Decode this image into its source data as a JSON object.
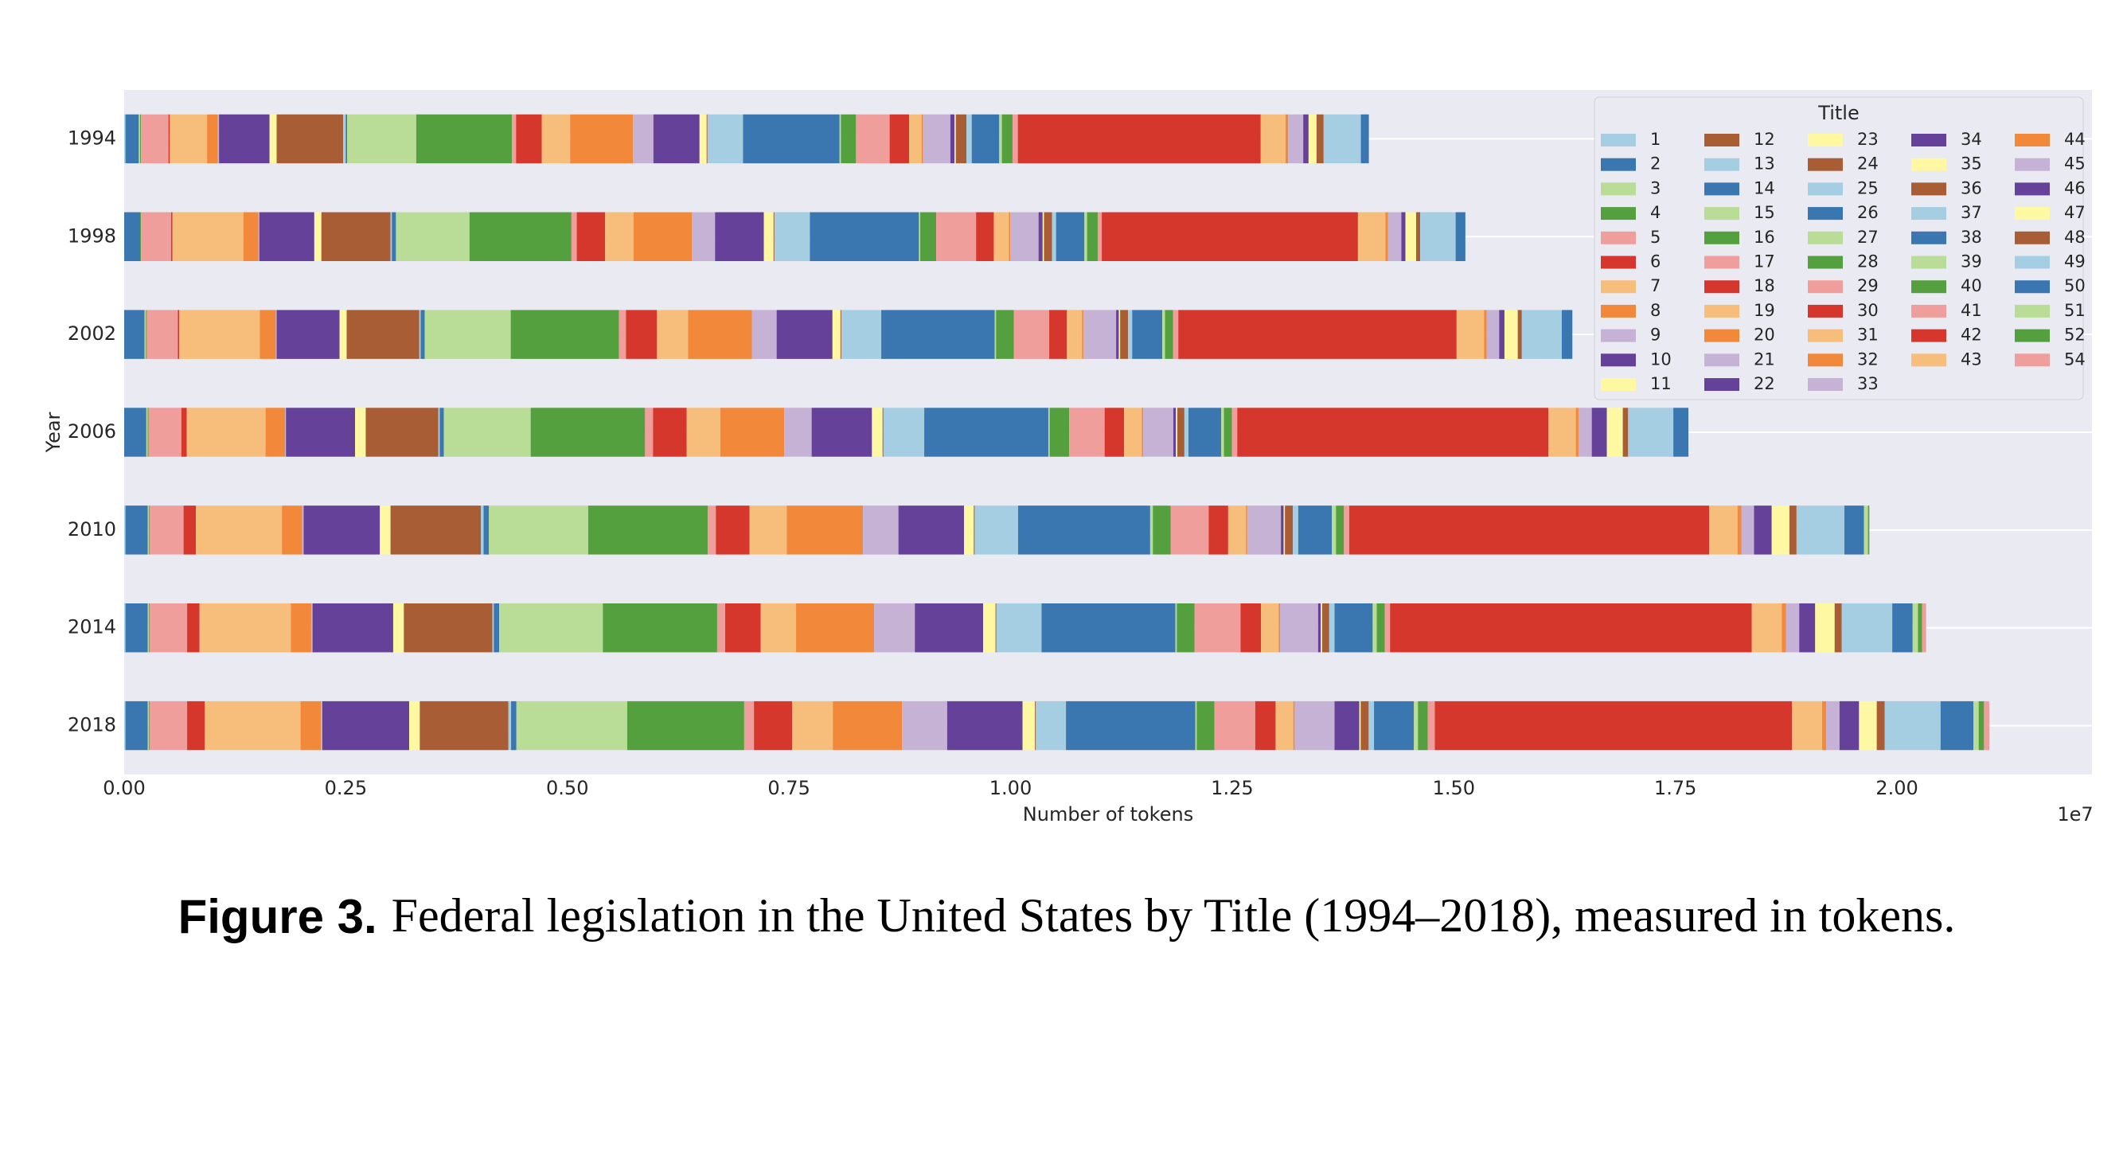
{
  "chart_data": {
    "type": "stacked_barh",
    "xlabel": "Number of tokens",
    "ylabel": "Year",
    "x_offset_label": "1e7",
    "legend_title": "Title",
    "legend_position": "upper right",
    "grid": true,
    "categories": [
      "1994",
      "1998",
      "2002",
      "2006",
      "2010",
      "2014",
      "2018"
    ],
    "xlim": [
      0,
      2.22
    ],
    "xticks": [
      {
        "value": 0,
        "label": "0.00"
      },
      {
        "value": 0.25,
        "label": "0.25"
      },
      {
        "value": 0.5,
        "label": "0.50"
      },
      {
        "value": 0.75,
        "label": "0.75"
      },
      {
        "value": 1,
        "label": "1.00"
      },
      {
        "value": 1.25,
        "label": "1.25"
      },
      {
        "value": 1.5,
        "label": "1.50"
      },
      {
        "value": 1.75,
        "label": "1.75"
      },
      {
        "value": 2,
        "label": "2.00"
      }
    ],
    "series": [
      {
        "name": "1",
        "color": "#a6cee3",
        "values": [
          0.0015,
          0,
          0,
          0,
          0.0015,
          0.0015,
          0.0015
        ]
      },
      {
        "name": "2",
        "color": "#3a77b0",
        "values": [
          0.015,
          0.018,
          0.023,
          0.025,
          0.025,
          0.025,
          0.025
        ]
      },
      {
        "name": "3",
        "color": "#b9dd96",
        "values": [
          0.0015,
          0,
          0.0015,
          0.0015,
          0.0015,
          0.0015,
          0.0015
        ]
      },
      {
        "name": "4",
        "color": "#55a03e",
        "values": [
          0.001,
          0.001,
          0.001,
          0.001,
          0.001,
          0.001,
          0.001
        ]
      },
      {
        "name": "5",
        "color": "#f09e9b",
        "values": [
          0.031,
          0.034,
          0.035,
          0.037,
          0.038,
          0.042,
          0.042
        ]
      },
      {
        "name": "6",
        "color": "#d5372d",
        "values": [
          0.0015,
          0.0015,
          0.0015,
          0.006,
          0.014,
          0.014,
          0.02
        ]
      },
      {
        "name": "7",
        "color": "#f6be7a",
        "values": [
          0.042,
          0.08,
          0.091,
          0.089,
          0.097,
          0.103,
          0.108
        ]
      },
      {
        "name": "8",
        "color": "#f2883a",
        "values": [
          0.012,
          0.017,
          0.018,
          0.022,
          0.023,
          0.023,
          0.023
        ]
      },
      {
        "name": "9",
        "color": "#c5b2d4",
        "values": [
          0.0015,
          0.001,
          0.001,
          0.001,
          0.0015,
          0.0015,
          0.0015
        ]
      },
      {
        "name": "10",
        "color": "#66419a",
        "values": [
          0.057,
          0.062,
          0.071,
          0.078,
          0.086,
          0.091,
          0.098
        ]
      },
      {
        "name": "11",
        "color": "#fdf8a1",
        "values": [
          0.008,
          0.008,
          0.008,
          0.012,
          0.012,
          0.012,
          0.012
        ]
      },
      {
        "name": "12",
        "color": "#a85d35",
        "values": [
          0.075,
          0.078,
          0.082,
          0.082,
          0.102,
          0.1,
          0.1
        ]
      },
      {
        "name": "13",
        "color": "#a6cee3",
        "values": [
          0.003,
          0.0015,
          0.0015,
          0.0015,
          0.003,
          0.0015,
          0.003
        ]
      },
      {
        "name": "14",
        "color": "#3a77b0",
        "values": [
          0.0015,
          0.0046,
          0.0046,
          0.0046,
          0.006,
          0.006,
          0.006
        ]
      },
      {
        "name": "15",
        "color": "#b9dd96",
        "values": [
          0.078,
          0.083,
          0.097,
          0.098,
          0.112,
          0.117,
          0.125
        ]
      },
      {
        "name": "16",
        "color": "#55a03e",
        "values": [
          0.108,
          0.115,
          0.122,
          0.129,
          0.135,
          0.129,
          0.132
        ]
      },
      {
        "name": "17",
        "color": "#f09e9b",
        "values": [
          0.0046,
          0.006,
          0.008,
          0.009,
          0.009,
          0.009,
          0.011
        ]
      },
      {
        "name": "18",
        "color": "#d5372d",
        "values": [
          0.029,
          0.032,
          0.035,
          0.038,
          0.038,
          0.04,
          0.043
        ]
      },
      {
        "name": "19",
        "color": "#f6be7a",
        "values": [
          0.032,
          0.032,
          0.035,
          0.038,
          0.042,
          0.04,
          0.046
        ]
      },
      {
        "name": "20",
        "color": "#f2883a",
        "values": [
          0.071,
          0.066,
          0.072,
          0.072,
          0.086,
          0.088,
          0.078
        ]
      },
      {
        "name": "21",
        "color": "#c5b2d4",
        "values": [
          0.023,
          0.026,
          0.028,
          0.031,
          0.04,
          0.046,
          0.051
        ]
      },
      {
        "name": "22",
        "color": "#66419a",
        "values": [
          0.052,
          0.055,
          0.063,
          0.068,
          0.074,
          0.077,
          0.085
        ]
      },
      {
        "name": "23",
        "color": "#fdf8a1",
        "values": [
          0.008,
          0.011,
          0.009,
          0.012,
          0.011,
          0.014,
          0.014
        ]
      },
      {
        "name": "24",
        "color": "#a85d35",
        "values": [
          0.001,
          0.001,
          0.001,
          0.001,
          0.001,
          0.001,
          0.001
        ]
      },
      {
        "name": "25",
        "color": "#a6cee3",
        "values": [
          0.04,
          0.04,
          0.045,
          0.046,
          0.049,
          0.051,
          0.034
        ]
      },
      {
        "name": "26",
        "color": "#3a77b0",
        "values": [
          0.109,
          0.123,
          0.128,
          0.14,
          0.149,
          0.151,
          0.146
        ]
      },
      {
        "name": "27",
        "color": "#b9dd96",
        "values": [
          0.0015,
          0.0015,
          0.0015,
          0.0015,
          0.003,
          0.0015,
          0.0015
        ]
      },
      {
        "name": "28",
        "color": "#55a03e",
        "values": [
          0.017,
          0.018,
          0.02,
          0.022,
          0.02,
          0.02,
          0.02
        ]
      },
      {
        "name": "29",
        "color": "#f09e9b",
        "values": [
          0.038,
          0.045,
          0.04,
          0.04,
          0.043,
          0.052,
          0.046
        ]
      },
      {
        "name": "30",
        "color": "#d5372d",
        "values": [
          0.022,
          0.02,
          0.02,
          0.022,
          0.022,
          0.023,
          0.023
        ]
      },
      {
        "name": "31",
        "color": "#f6be7a",
        "values": [
          0.014,
          0.017,
          0.017,
          0.02,
          0.02,
          0.02,
          0.02
        ]
      },
      {
        "name": "32",
        "color": "#f2883a",
        "values": [
          0.0015,
          0.0015,
          0.0015,
          0.0015,
          0.0015,
          0.0015,
          0.0015
        ]
      },
      {
        "name": "33",
        "color": "#c5b2d4",
        "values": [
          0.031,
          0.032,
          0.037,
          0.034,
          0.038,
          0.043,
          0.045
        ]
      },
      {
        "name": "34",
        "color": "#66419a",
        "values": [
          0.0046,
          0.0046,
          0.003,
          0.003,
          0.003,
          0.003,
          0.028
        ]
      },
      {
        "name": "35",
        "color": "#fdf8a1",
        "values": [
          0.0015,
          0.0015,
          0.0015,
          0.0015,
          0.0015,
          0.0015,
          0.0015
        ]
      },
      {
        "name": "36",
        "color": "#a85d35",
        "values": [
          0.012,
          0.009,
          0.009,
          0.008,
          0.009,
          0.008,
          0.009
        ]
      },
      {
        "name": "37",
        "color": "#a6cee3",
        "values": [
          0.006,
          0.0046,
          0.0046,
          0.0046,
          0.006,
          0.006,
          0.006
        ]
      },
      {
        "name": "38",
        "color": "#3a77b0",
        "values": [
          0.031,
          0.032,
          0.034,
          0.037,
          0.038,
          0.043,
          0.045
        ]
      },
      {
        "name": "39",
        "color": "#b9dd96",
        "values": [
          0.003,
          0.003,
          0.003,
          0.003,
          0.0046,
          0.0046,
          0.0046
        ]
      },
      {
        "name": "40",
        "color": "#55a03e",
        "values": [
          0.012,
          0.012,
          0.009,
          0.009,
          0.009,
          0.009,
          0.011
        ]
      },
      {
        "name": "41",
        "color": "#f09e9b",
        "values": [
          0.006,
          0.0046,
          0.006,
          0.006,
          0.006,
          0.006,
          0.008
        ]
      },
      {
        "name": "42",
        "color": "#d5372d",
        "values": [
          0.274,
          0.289,
          0.314,
          0.351,
          0.406,
          0.408,
          0.403
        ]
      },
      {
        "name": "43",
        "color": "#f6be7a",
        "values": [
          0.028,
          0.031,
          0.031,
          0.031,
          0.032,
          0.034,
          0.034
        ]
      },
      {
        "name": "44",
        "color": "#f2883a",
        "values": [
          0.003,
          0.003,
          0.003,
          0.003,
          0.0046,
          0.0046,
          0.0046
        ]
      },
      {
        "name": "45",
        "color": "#c5b2d4",
        "values": [
          0.017,
          0.015,
          0.014,
          0.015,
          0.014,
          0.015,
          0.015
        ]
      },
      {
        "name": "46",
        "color": "#66419a",
        "values": [
          0.006,
          0.0046,
          0.006,
          0.017,
          0.02,
          0.018,
          0.022
        ]
      },
      {
        "name": "47",
        "color": "#fdf8a1",
        "values": [
          0.009,
          0.012,
          0.015,
          0.018,
          0.02,
          0.022,
          0.02
        ]
      },
      {
        "name": "48",
        "color": "#a85d35",
        "values": [
          0.008,
          0.0046,
          0.0046,
          0.006,
          0.008,
          0.008,
          0.009
        ]
      },
      {
        "name": "49",
        "color": "#a6cee3",
        "values": [
          0.042,
          0.04,
          0.045,
          0.051,
          0.054,
          0.057,
          0.063
        ]
      },
      {
        "name": "50",
        "color": "#3a77b0",
        "values": [
          0.009,
          0.011,
          0.012,
          0.017,
          0.022,
          0.023,
          0.037
        ]
      },
      {
        "name": "51",
        "color": "#b9dd96",
        "values": [
          0,
          0,
          0,
          0,
          0.0046,
          0.006,
          0.006
        ]
      },
      {
        "name": "52",
        "color": "#55a03e",
        "values": [
          0,
          0,
          0,
          0,
          0.0015,
          0.0046,
          0.006
        ]
      },
      {
        "name": "54",
        "color": "#f09e9b",
        "values": [
          0,
          0,
          0,
          0,
          0,
          0.0046,
          0.006
        ]
      }
    ]
  },
  "figure": {
    "label": "Figure 3.",
    "caption": "Federal legislation in the United States by Title (1994–2018), measured in tokens."
  }
}
